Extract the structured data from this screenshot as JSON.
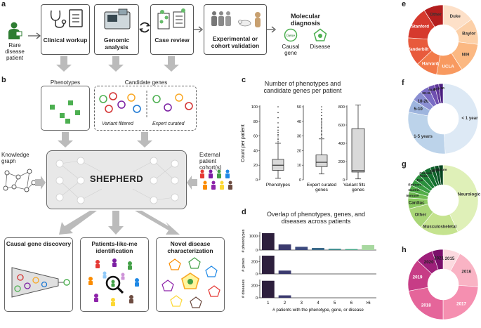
{
  "panel_labels": {
    "a": "a",
    "b": "b",
    "c": "c",
    "d": "d",
    "e": "e",
    "f": "f",
    "g": "g",
    "h": "h"
  },
  "panel_a": {
    "patient_label": "Rare disease patient",
    "steps": [
      "Clinical workup",
      "Genomic analysis",
      "Case review",
      "Experimental or cohort validation"
    ],
    "molecular_diagnosis": "Molecular diagnosis",
    "causal_gene": "Causal gene",
    "disease": "Disease",
    "gene_token": "Gene"
  },
  "panel_b": {
    "phenotypes_title": "Phenotypes",
    "candidate_title": "Candidate genes",
    "variant_filtered": "Variant filtered",
    "expert_curated": "Expert curated",
    "knowledge_graph": "Knowledge graph",
    "external_cohort": "External patient cohort(s)",
    "model_name": "SHEPHERD",
    "outputs": [
      "Causal gene discovery",
      "Patients-like-me identification",
      "Novel disease characterization"
    ],
    "colors": {
      "phenotype": "#4caf50",
      "gene_green": "#4caf50",
      "gene_red": "#d32f2f",
      "gene_purple": "#7b1fa2",
      "gene_orange": "#f9a825",
      "gene_blue": "#1976d2"
    }
  },
  "chart_data": [
    {
      "id": "c",
      "type": "box",
      "title": "Number of phenotypes and candidate genes per patient",
      "ylabel": "Count per patient",
      "boxes": [
        {
          "name": "Phenotypes",
          "min": 2,
          "q1": 13,
          "median": 20,
          "q3": 28,
          "max": 50,
          "ylim": [
            0,
            100
          ],
          "ticks": [
            0,
            20,
            40,
            60,
            80,
            100
          ],
          "outliers": [
            52,
            55,
            57,
            60,
            62,
            65,
            68,
            72,
            78,
            85,
            92,
            100,
            107
          ]
        },
        {
          "name": "Expert curated genes",
          "min": 4,
          "q1": 9,
          "median": 12,
          "q3": 17,
          "max": 28,
          "ylim": [
            0,
            50
          ],
          "ticks": [
            0,
            10,
            20,
            30,
            40,
            50
          ],
          "outliers": [
            29,
            30,
            31,
            32,
            33,
            34,
            35,
            36,
            37,
            38,
            39,
            40,
            41,
            42,
            44,
            46,
            48,
            50
          ]
        },
        {
          "name": "Variant filtered genes",
          "min": 10,
          "q1": 85,
          "median": 100,
          "q3": 560,
          "max": 820,
          "ylim": [
            0,
            800
          ],
          "ticks": [
            0,
            200,
            400,
            600,
            800
          ],
          "outliers": []
        }
      ]
    },
    {
      "id": "d",
      "type": "bar",
      "title": "Overlap of phenotypes, genes, and diseases across patients",
      "xlabel": "# patients with the phenotype, gene, or disease",
      "categories": [
        "1",
        "2",
        "3",
        "4",
        "5",
        "6",
        ">6"
      ],
      "series": [
        {
          "name": "# phenotypes",
          "values": [
            1200,
            400,
            230,
            150,
            90,
            70,
            350
          ],
          "ylim": [
            0,
            1300
          ],
          "ticks": [
            0,
            1000
          ],
          "colors": [
            "#2d1f3d",
            "#3b3a6e",
            "#3d4a7e",
            "#3c6a8a",
            "#3b8a8c",
            "#4aa88a",
            "#a8d8a0"
          ]
        },
        {
          "name": "# genes",
          "values": [
            300,
            55,
            0,
            0,
            0,
            0,
            0
          ],
          "ylim": [
            0,
            300
          ],
          "ticks": [
            0,
            200
          ],
          "colors": [
            "#2d1f3d",
            "#3b3a6e",
            "#3d4a7e",
            "#3c6a8a",
            "#3b8a8c",
            "#4aa88a",
            "#a8d8a0"
          ]
        },
        {
          "name": "# diseases",
          "values": [
            280,
            40,
            0,
            0,
            0,
            0,
            0
          ],
          "ylim": [
            0,
            300
          ],
          "ticks": [
            0,
            200
          ],
          "colors": [
            "#2d1f3d",
            "#3b3a6e",
            "#3d4a7e",
            "#3c6a8a",
            "#3b8a8c",
            "#4aa88a",
            "#a8d8a0"
          ]
        }
      ]
    },
    {
      "id": "e",
      "type": "pie",
      "donut": true,
      "categories": [
        "Duke",
        "Baylor",
        "NIH",
        "UCLA",
        "Harvard",
        "Vanderbilt",
        "Stanford",
        "Other"
      ],
      "values": [
        15,
        12,
        14,
        12,
        10,
        13,
        15,
        9
      ],
      "colors": [
        "#fde0c8",
        "#fcd0a8",
        "#fbb882",
        "#f89a60",
        "#f27a4a",
        "#e85a3c",
        "#d63a2e",
        "#b31e1e"
      ],
      "label_colors": [
        "#333",
        "#333",
        "#333",
        "#fff",
        "#fff",
        "#fff",
        "#fff",
        "#333"
      ]
    },
    {
      "id": "f",
      "type": "pie",
      "donut": true,
      "categories": [
        "< 1 year",
        "1-5 years",
        "5-10",
        "10-20",
        "20-30",
        "30-40",
        "40-50",
        "> 50"
      ],
      "values": [
        49,
        29,
        6,
        5,
        4,
        3,
        2,
        2
      ],
      "colors": [
        "#dde9f5",
        "#bcd3ea",
        "#9eb5de",
        "#8a8fd2",
        "#7a6cc4",
        "#6f4fb0",
        "#5e3598",
        "#4a1f80"
      ],
      "label_colors": [
        "#333",
        "#333",
        "#222",
        "#222",
        "#222",
        "#222",
        "#222",
        "#222"
      ]
    },
    {
      "id": "g",
      "type": "pie",
      "donut": true,
      "categories": [
        "Neurologic",
        "Musculoskeletal",
        "Other",
        "Cardiac",
        "Immune",
        "Gastric",
        "Endocrine",
        "Eye",
        "Renal",
        "Craniofacial",
        "Skin",
        "Pulm",
        "Rheum"
      ],
      "values": [
        43,
        18,
        10,
        5,
        3,
        3,
        3,
        3,
        3,
        3,
        2,
        2,
        2
      ],
      "colors": [
        "#dff0b8",
        "#c5e38f",
        "#a9d677",
        "#8ccb62",
        "#6fbc52",
        "#52ad48",
        "#3a9e42",
        "#2a8f3c",
        "#1e8036",
        "#147030",
        "#0e612a",
        "#085224",
        "#04441e"
      ],
      "label_colors": [
        "#333",
        "#333",
        "#333",
        "#222",
        "#222",
        "#222",
        "#222",
        "#222",
        "#222",
        "#222",
        "#222",
        "#222",
        "#222"
      ]
    },
    {
      "id": "h",
      "type": "pie",
      "donut": true,
      "categories": [
        "2015",
        "2016",
        "2017",
        "2018",
        "2019",
        "2020",
        "2021"
      ],
      "values": [
        8,
        18,
        24,
        22,
        15,
        8,
        5
      ],
      "colors": [
        "#fcd9df",
        "#f9b3c4",
        "#f58fb0",
        "#e5659a",
        "#c73c86",
        "#9e1f7a",
        "#7a0f6a"
      ],
      "label_colors": [
        "#333",
        "#333",
        "#fff",
        "#fff",
        "#fff",
        "#222",
        "#222"
      ]
    }
  ]
}
